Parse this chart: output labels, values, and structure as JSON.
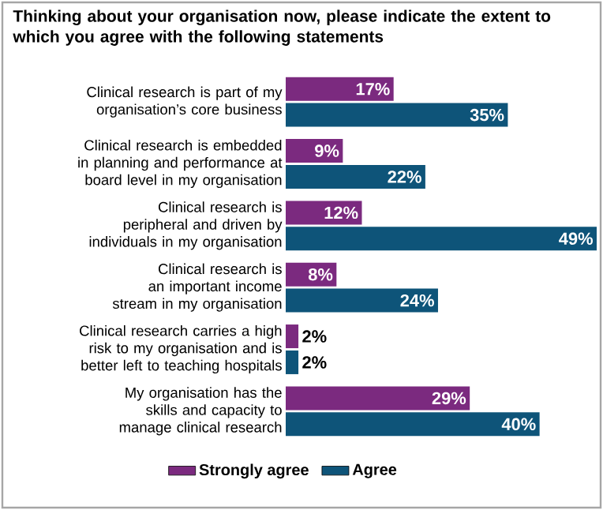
{
  "chart_data": {
    "type": "bar",
    "orientation": "horizontal",
    "title": "Thinking about your organisation now, please indicate the extent to which you agree with the following statements",
    "categories": [
      "Clinical research is part of my organisation’s core business",
      "Clinical research is embedded in planning and performance at board level in my organisation",
      "Clinical research is peripheral and driven by individuals in my organisation",
      "Clinical research is an important income stream in my organisation",
      "Clinical research carries a high risk to my organisation and is better left to teaching hospitals",
      "My organisation has the skills and capacity to manage clinical research"
    ],
    "series": [
      {
        "name": "Strongly agree",
        "color": "#7b2a7f",
        "values": [
          17,
          9,
          12,
          8,
          2,
          29
        ],
        "value_labels": [
          "17%",
          "9%",
          "12%",
          "8%",
          "2%",
          "29%"
        ]
      },
      {
        "name": "Agree",
        "color": "#0e5479",
        "values": [
          35,
          22,
          49,
          24,
          2,
          40
        ],
        "value_labels": [
          "35%",
          "22%",
          "49%",
          "24%",
          "2%",
          "40%"
        ]
      }
    ],
    "legend": "bottom"
  }
}
